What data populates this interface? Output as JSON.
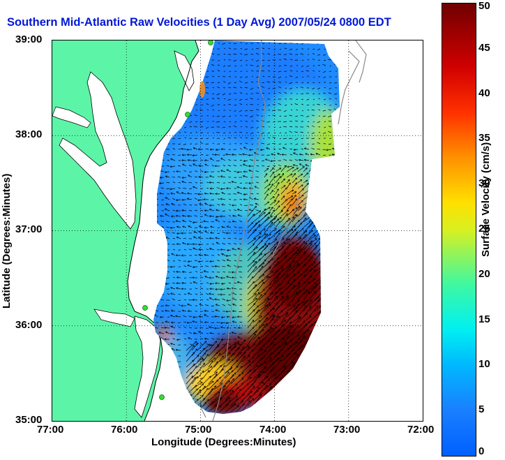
{
  "title": "Southern Mid-Atlantic Raw Velocities (1 Day Avg) 2007/05/24 0800 EDT",
  "x_axis": {
    "label": "Longitude (Degrees:Minutes)",
    "ticks": [
      "77:00",
      "76:00",
      "75:00",
      "74:00",
      "73:00",
      "72:00"
    ]
  },
  "y_axis": {
    "label": "Latitude (Degrees:Minutes)",
    "ticks": [
      "39:00",
      "38:00",
      "37:00",
      "36:00",
      "35:00"
    ]
  },
  "colorbar": {
    "label": "Surface Velocity (cm/s)",
    "ticks": [
      "50",
      "45",
      "40",
      "35",
      "30",
      "25",
      "20",
      "15",
      "10",
      "5",
      "0"
    ],
    "min": 0,
    "max": 50
  },
  "map": {
    "extent": {
      "lon_min": -77,
      "lon_max": -72,
      "lat_min": 35,
      "lat_max": 39
    },
    "grid": "dotted",
    "land_color": "#5cf5a8",
    "station_color": "#33dd33"
  }
}
